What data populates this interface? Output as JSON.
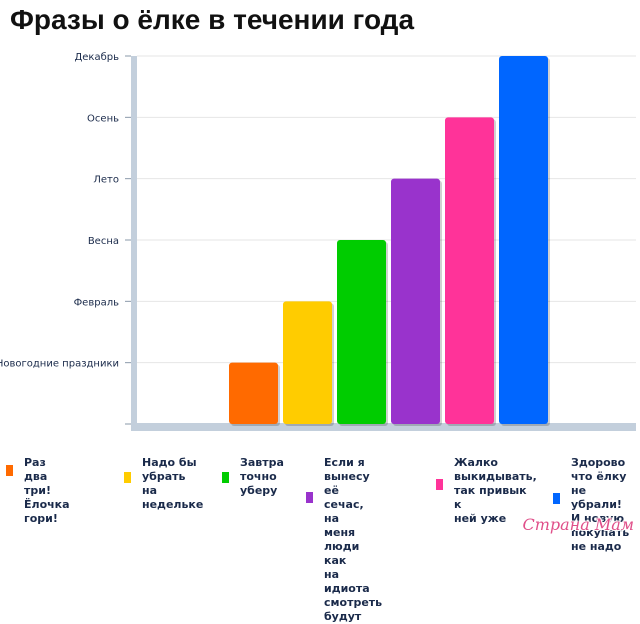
{
  "chart_data": {
    "type": "bar",
    "title": "Фразы о ёлке в течении года",
    "y_categories": [
      "Новогодние праздники",
      "Февраль",
      "Весна",
      "Лето",
      "Осень",
      "Декабрь"
    ],
    "categories": [
      "Раз два три! Ёлочка гори!",
      "Надо бы убрать на недельке",
      "Завтра точно уберу",
      "Если я вынесу её сечас, на меня люди как на идиота смотреть будут",
      "Жалко выкидывать, так привык к ней уже",
      "Здорово что ёлку не убрали! И новую покупать не надо"
    ],
    "values": [
      1,
      2,
      3,
      4,
      5,
      6
    ],
    "ylim": [
      0,
      6
    ],
    "grid": true,
    "colors": [
      "#ff6a00",
      "#ffcc00",
      "#00cc00",
      "#9933cc",
      "#ff3399",
      "#0066ff"
    ],
    "legend_position": "bottom"
  },
  "legend_lines": [
    [
      "Раз два три!",
      "Ёлочка гори!"
    ],
    [
      "Надо бы",
      "убрать на",
      "недельке"
    ],
    [
      "Завтра",
      "точно",
      "уберу"
    ],
    [
      "Если я вынесу",
      "её сечас, на",
      "меня люди как",
      "на идиота",
      "смотреть",
      "будут"
    ],
    [
      "Жалко",
      "выкидывать,",
      "так привык к",
      "ней уже"
    ],
    [
      "Здорово",
      "что ёлку",
      "не убрали!",
      "И новую",
      "покупать",
      "не надо"
    ]
  ],
  "watermark": "Страна Мам"
}
